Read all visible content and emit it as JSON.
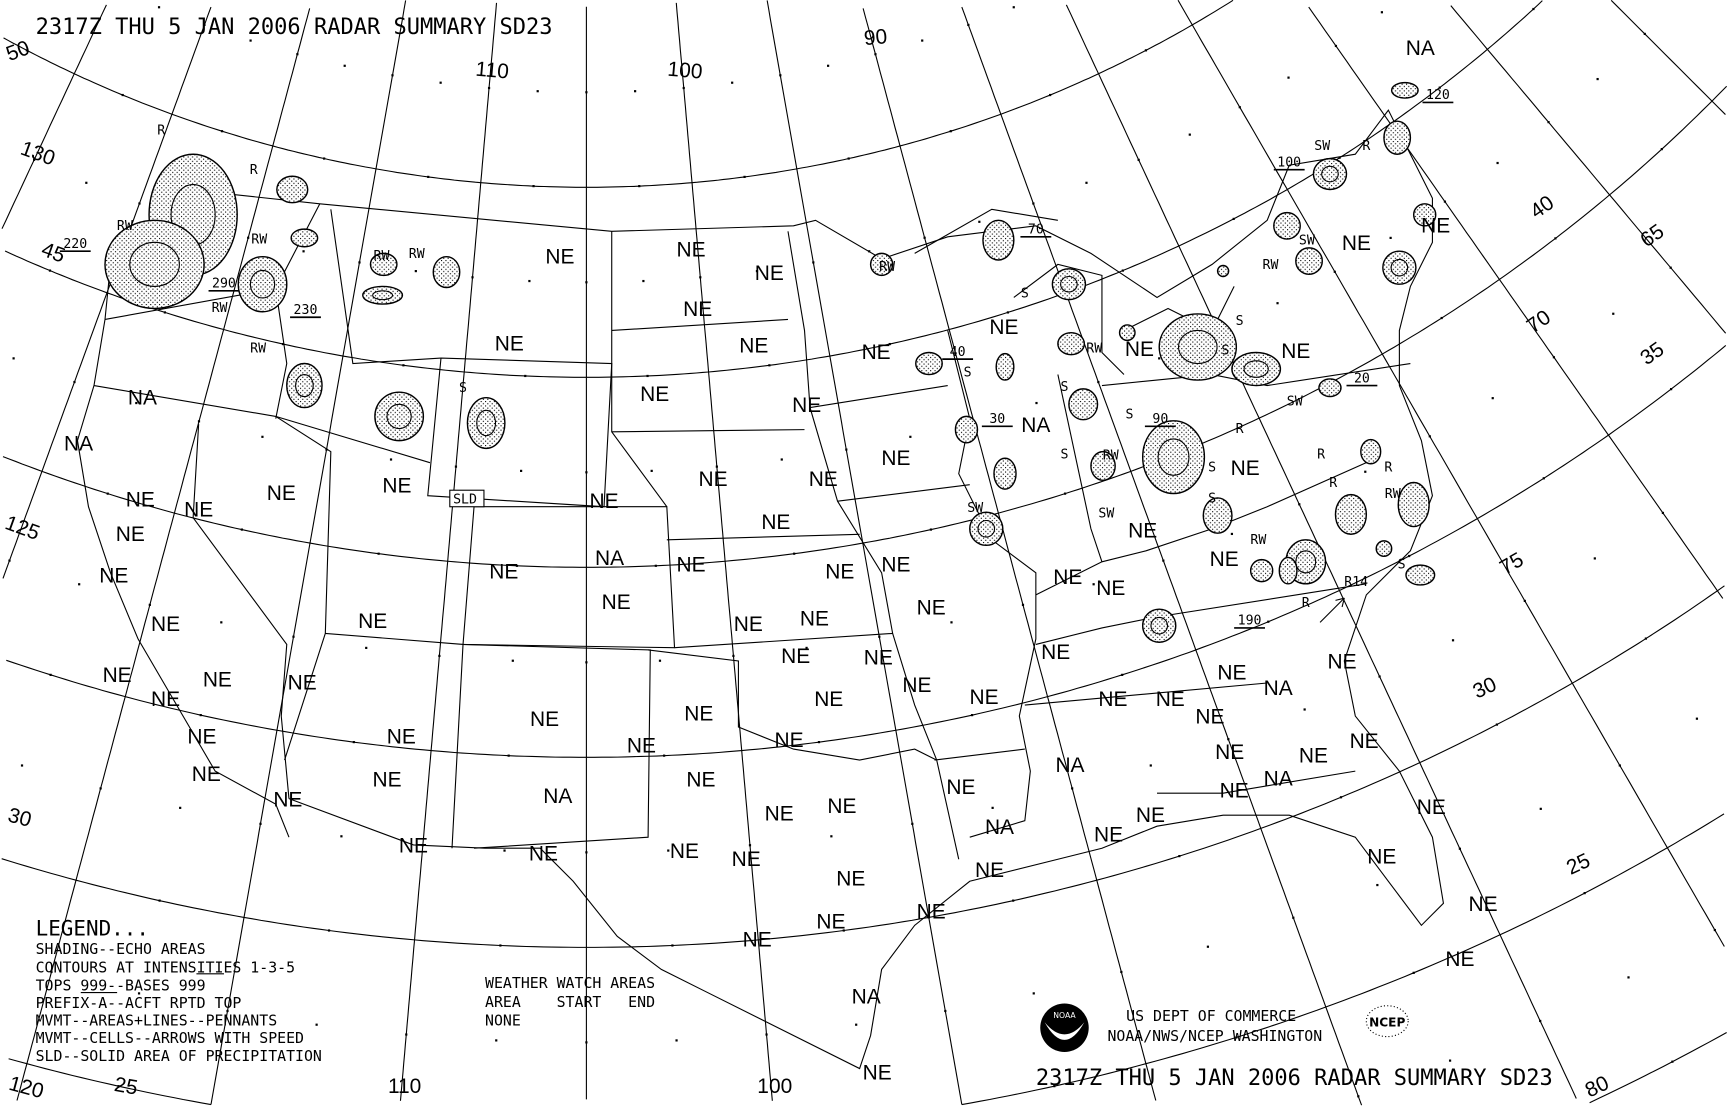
{
  "header": {
    "title": "2317Z THU  5 JAN 2006 RADAR SUMMARY SD23"
  },
  "footer": {
    "title": "2317Z THU  5 JAN 2006 RADAR SUMMARY SD23"
  },
  "agency": {
    "line1": "US DEPT OF COMMERCE",
    "line2": "NOAA/NWS/NCEP WASHINGTON",
    "noaa_logo": "NOAA",
    "ncep_logo": "NCEP"
  },
  "legend": {
    "title": "LEGEND...",
    "lines": [
      "SHADING--ECHO AREAS",
      "CONTOURS AT INTENSITIES 1-3-5",
      "TOPS 999--BASES 999",
      "PREFIX-A--ACFT RPTD TOP",
      "MVMT--AREAS+LINES--PENNANTS",
      "MVMT--CELLS--ARROWS WITH SPEED",
      "SLD--SOLID AREA OF PRECIPITATION"
    ]
  },
  "watch": {
    "title": "WEATHER WATCH AREAS",
    "columns": "AREA    START   END",
    "value": "NONE"
  },
  "grid_labels": [
    "50",
    "110",
    "100",
    "90",
    "130",
    "45",
    "125",
    "40",
    "65",
    "70",
    "35",
    "75",
    "30",
    "25",
    "120",
    "25",
    "110",
    "100",
    "30",
    "80"
  ],
  "state_labels": [
    "NE",
    "NE",
    "NE",
    "NE",
    "NE",
    "NE",
    "NE",
    "NE",
    "NE",
    "NE",
    "NE",
    "NE",
    "NE",
    "NE",
    "NE",
    "NE",
    "NE",
    "NE",
    "NE",
    "NE",
    "NE",
    "NE",
    "NE",
    "NE",
    "NE",
    "NE",
    "NE",
    "NE",
    "NE",
    "NE",
    "NE",
    "NE",
    "NE",
    "NE",
    "NE",
    "NE",
    "NE",
    "NE",
    "NE",
    "NE",
    "NE",
    "NE",
    "NE",
    "NE",
    "NE",
    "NE",
    "NE",
    "NE",
    "NE",
    "NE",
    "NE",
    "NE",
    "NE",
    "NE",
    "NE",
    "NE",
    "NE",
    "NE",
    "NE",
    "NE",
    "NE",
    "NE",
    "NE",
    "NE",
    "NE",
    "NE",
    "NE",
    "NE",
    "NE",
    "NE",
    "NE",
    "NE",
    "NE",
    "NE",
    "NE",
    "NE",
    "NE",
    "NE",
    "NE",
    "NE",
    "NE",
    "NE",
    "NE",
    "NE",
    "NE",
    "NE",
    "NE",
    "NE",
    "NA",
    "NA",
    "NA",
    "NA",
    "NA",
    "NA",
    "NA",
    "NA",
    "NA",
    "NA",
    "NA"
  ],
  "echo_types": [
    "R",
    "R",
    "RW",
    "RW",
    "RW",
    "RW",
    "RW",
    "RW",
    "S",
    "RW",
    "S",
    "S",
    "S",
    "S",
    "SW",
    "SW",
    "RW",
    "S",
    "S",
    "RW",
    "SW",
    "S",
    "S",
    "RW",
    "S",
    "R",
    "R",
    "R",
    "R",
    "RW",
    "RW",
    "SW",
    "SW",
    "R",
    "S",
    "R"
  ],
  "tops": [
    "220",
    "290",
    "230",
    "70",
    "40",
    "30",
    "90",
    "100",
    "120",
    "20",
    "190"
  ],
  "movement": {
    "label": "R14"
  },
  "sld_label": "SLD",
  "colors": {
    "background": "#ffffff",
    "ink": "#000000"
  }
}
